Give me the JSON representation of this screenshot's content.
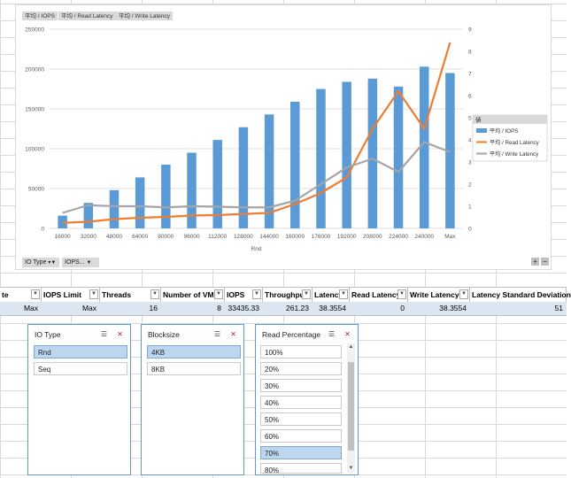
{
  "field_buttons": {
    "b1": "平均 / IOPS",
    "b2": "平均 / Read Latency",
    "b3": "平均 / Write Latency"
  },
  "bottom_fields": {
    "io_type": "IO Type",
    "iops_limit": "IOPS..."
  },
  "zoom_buttons": {
    "plus": "+",
    "minus": "−"
  },
  "legend": {
    "title": "値",
    "items": [
      {
        "label": "平均 / IOPS",
        "color": "#5b9bd5"
      },
      {
        "label": "平均 / Read Latency",
        "color": "#ed7d31"
      },
      {
        "label": "平均 / Write Latency",
        "color": "#a5a5a5"
      }
    ]
  },
  "chart_data": {
    "type": "bar",
    "xlabel": "Rnd",
    "categories": [
      "16000",
      "32000",
      "48000",
      "64000",
      "80000",
      "96000",
      "112000",
      "128000",
      "144000",
      "160000",
      "176000",
      "192000",
      "208000",
      "224000",
      "240000",
      "Max"
    ],
    "y_left_ticks": [
      "0",
      "50000",
      "100000",
      "150000",
      "200000",
      "250000"
    ],
    "y_right_ticks": [
      "0",
      "1",
      "2",
      "3",
      "4",
      "5",
      "6",
      "7",
      "8",
      "9"
    ],
    "ylim_left": [
      0,
      250000
    ],
    "ylim_right": [
      0,
      9
    ],
    "series": [
      {
        "name": "平均 / IOPS",
        "type": "bar",
        "axis": "left",
        "color": "#5b9bd5",
        "values": [
          16000,
          32000,
          48000,
          64000,
          80000,
          95000,
          111000,
          127000,
          143000,
          159000,
          175000,
          184000,
          188000,
          178000,
          203000,
          195000
        ]
      },
      {
        "name": "平均 / Read Latency",
        "type": "line",
        "axis": "right",
        "color": "#ed7d31",
        "values": [
          0.25,
          0.3,
          0.42,
          0.48,
          0.52,
          0.58,
          0.6,
          0.65,
          0.7,
          1.1,
          1.6,
          2.3,
          4.5,
          6.2,
          4.5,
          8.4
        ]
      },
      {
        "name": "平均 / Write Latency",
        "type": "line",
        "axis": "right",
        "color": "#a5a5a5",
        "values": [
          0.7,
          1.05,
          1.0,
          1.0,
          0.95,
          1.0,
          0.98,
          0.95,
          0.95,
          1.25,
          2.0,
          2.75,
          3.15,
          2.55,
          3.9,
          3.45
        ]
      }
    ],
    "grid": true,
    "legend_position": "right"
  },
  "table": {
    "headers": [
      "te",
      "IOPS Limit",
      "Threads",
      "Number of VM",
      "IOPS",
      "Throughpu",
      "Latency",
      "Read Latency",
      "Write Latency",
      "Latency Standard Deviation"
    ],
    "row": [
      "Max",
      "Max",
      "16",
      "8",
      "33435.33",
      "261.23",
      "38.3554",
      "0",
      "38.3554",
      "51"
    ]
  },
  "slicers": [
    {
      "title": "IO Type",
      "items": [
        {
          "label": "Rnd",
          "selected": true
        },
        {
          "label": "Seq",
          "selected": false
        }
      ]
    },
    {
      "title": "Blocksize",
      "items": [
        {
          "label": "4KB",
          "selected": true
        },
        {
          "label": "8KB",
          "selected": false
        }
      ]
    },
    {
      "title": "Read Percentage",
      "items": [
        {
          "label": "100%",
          "selected": false
        },
        {
          "label": "20%",
          "selected": false
        },
        {
          "label": "30%",
          "selected": false
        },
        {
          "label": "40%",
          "selected": false
        },
        {
          "label": "50%",
          "selected": false
        },
        {
          "label": "60%",
          "selected": false
        },
        {
          "label": "70%",
          "selected": true
        },
        {
          "label": "80%",
          "selected": false
        }
      ]
    }
  ],
  "icons": {
    "multi_select": "multi-select-icon",
    "clear_filter": "clear-filter-icon"
  }
}
